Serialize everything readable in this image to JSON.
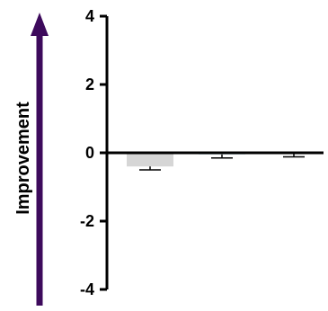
{
  "chart_data": {
    "type": "bar",
    "categories": [
      "",
      "",
      ""
    ],
    "values": [
      -0.4,
      -0.05,
      0.0
    ],
    "errors": [
      0.1,
      0.1,
      0.12
    ],
    "bar_colors": [
      "#d6d6d6",
      "#d8ecf3",
      "#ffffff"
    ],
    "ylabel": "Improvement",
    "ylim": [
      -4,
      4
    ],
    "yticks": [
      4,
      2,
      0,
      -2,
      -4
    ],
    "ytick_labels": [
      "4",
      "2",
      "0",
      "-2",
      "-4"
    ],
    "arrow_color": "#3d0a5c",
    "grid": false,
    "legend": "none"
  }
}
